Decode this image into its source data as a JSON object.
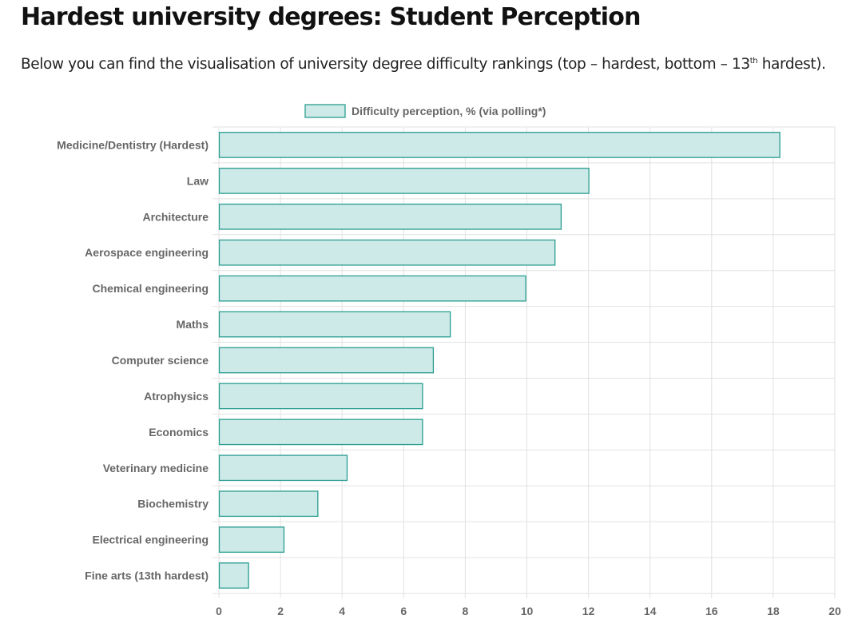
{
  "header": {
    "title": "Hardest university degrees: Student Perception",
    "intro_before": "Below you can find the visualisation of university degree difficulty rankings (top – hardest, bottom – 13",
    "intro_sup": "th",
    "intro_after": " hardest)."
  },
  "colors": {
    "bar_fill": "#cdeae8",
    "bar_stroke": "#2a9d8f",
    "grid": "#e2e2e2",
    "label": "#666666"
  },
  "chart_data": {
    "type": "bar",
    "orientation": "horizontal",
    "categories": [
      "Medicine/Dentistry (Hardest)",
      "Law",
      "Architecture",
      "Aerospace engineering",
      "Chemical engineering",
      "Maths",
      "Computer science",
      "Atrophysics",
      "Economics",
      "Veterinary medicine",
      "Biochemistry",
      "Electrical engineering",
      "Fine arts (13th hardest)"
    ],
    "series": [
      {
        "name": "Difficulty perception, % (via polling*)",
        "values": [
          18.2,
          12.0,
          11.1,
          10.9,
          9.95,
          7.5,
          6.95,
          6.6,
          6.6,
          4.15,
          3.2,
          2.1,
          0.95
        ]
      }
    ],
    "xlim": [
      0,
      20
    ],
    "xticks": [
      0,
      2,
      4,
      6,
      8,
      10,
      12,
      14,
      16,
      18,
      20
    ],
    "grid": true,
    "legend": "top-center"
  }
}
